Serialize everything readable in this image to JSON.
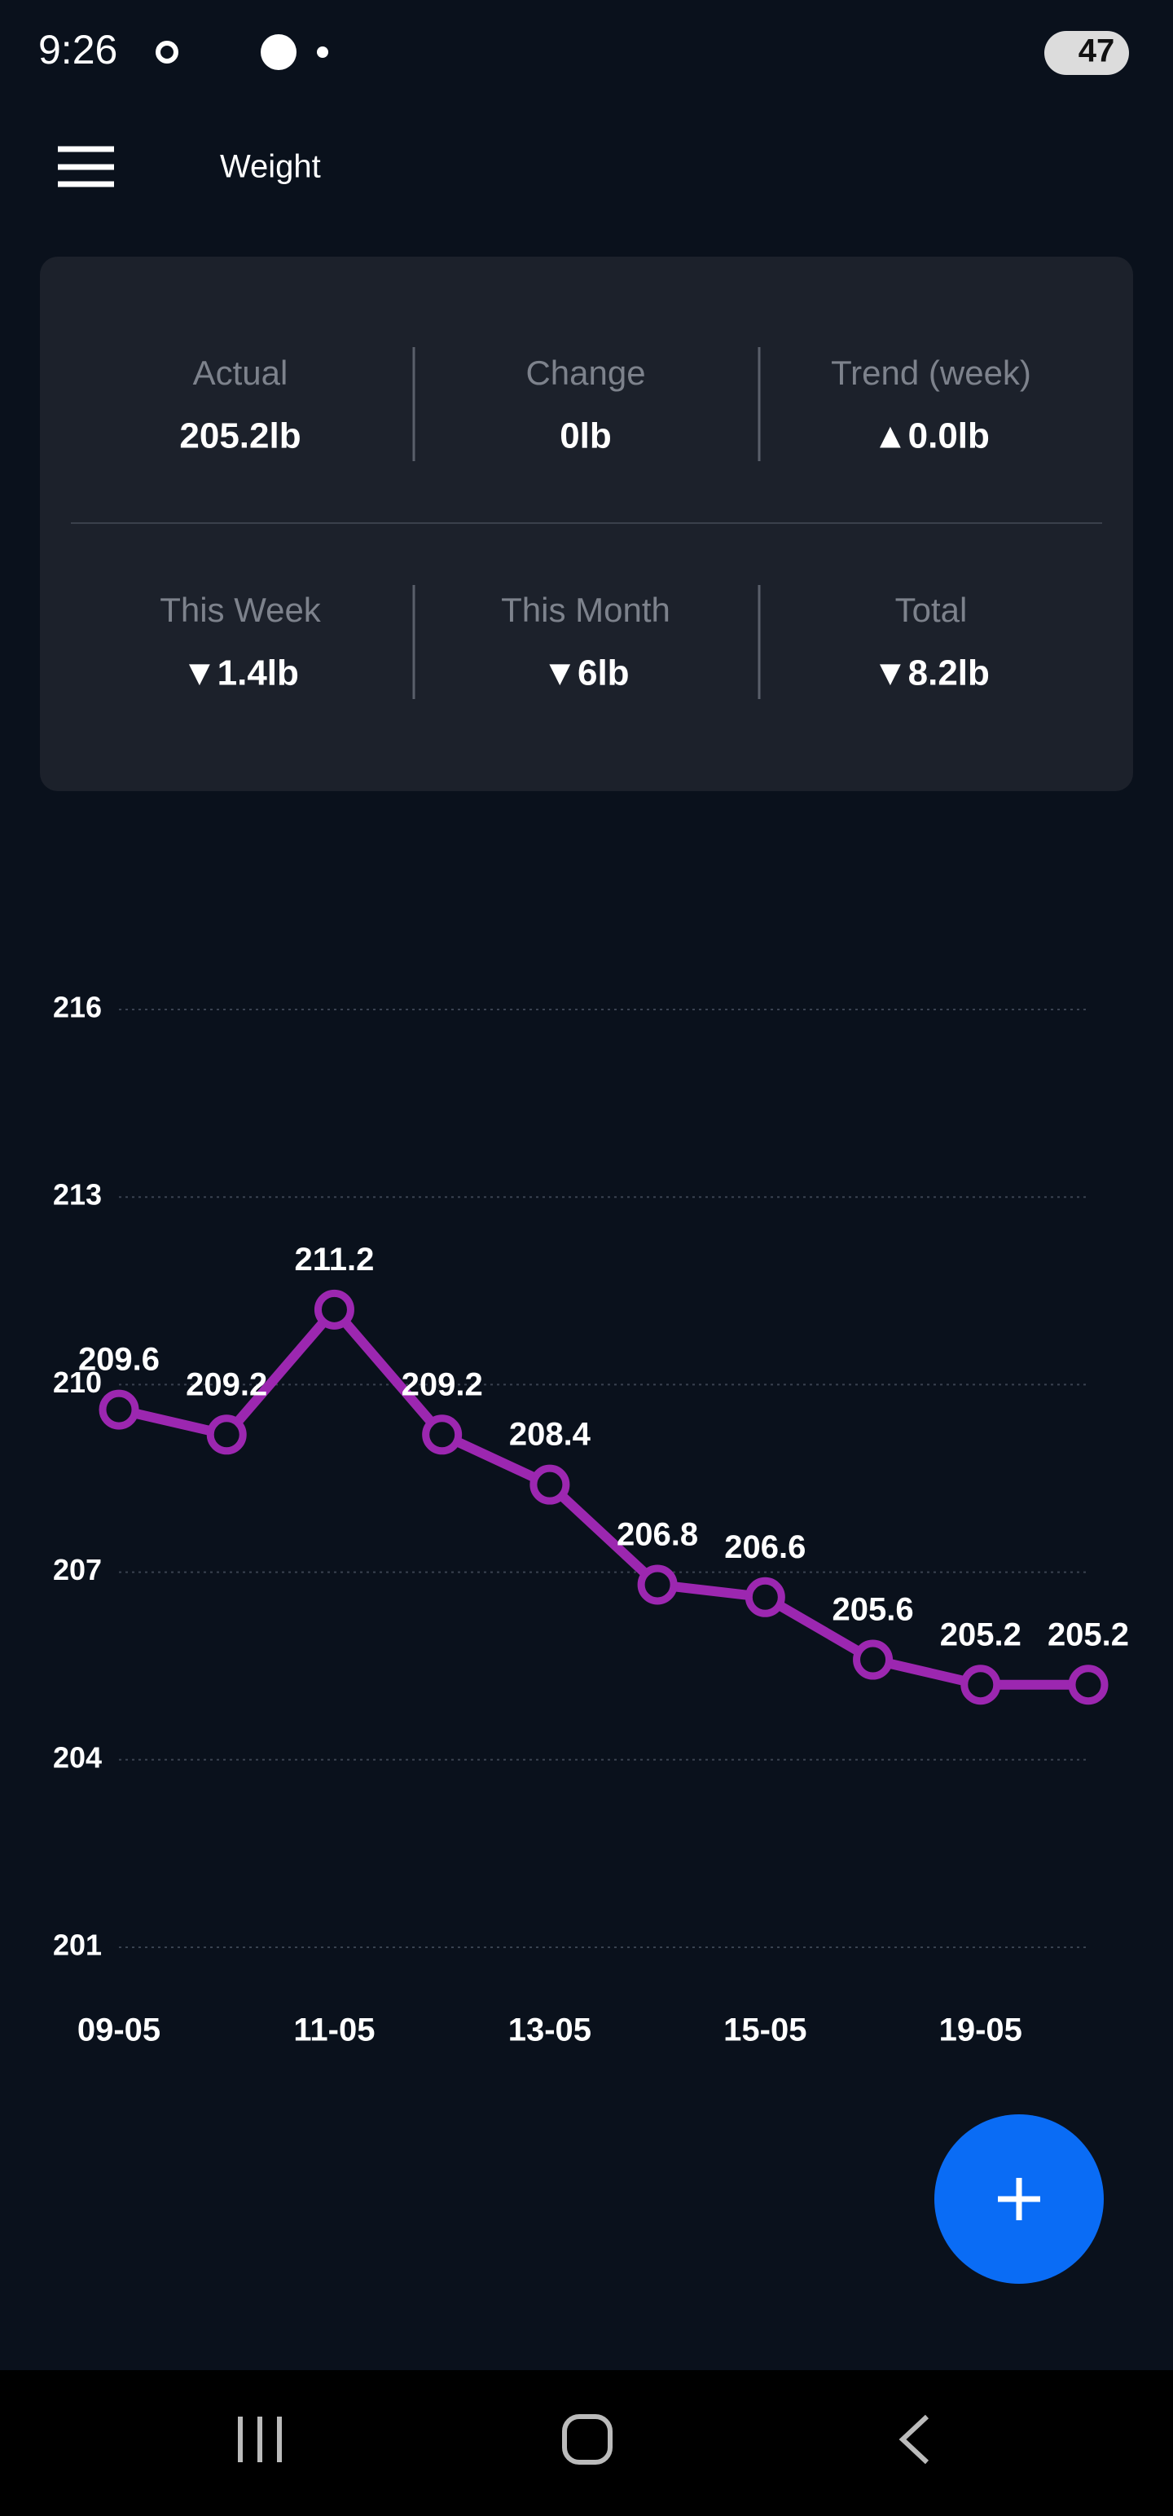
{
  "status_bar": {
    "time": "9:26",
    "battery": "47"
  },
  "header": {
    "title": "Weight"
  },
  "stats": [
    [
      {
        "label": "Actual",
        "value": "205.2lb"
      },
      {
        "label": "Change",
        "value": "0lb"
      },
      {
        "label": "Trend (week)",
        "value": "▲0.0lb"
      }
    ],
    [
      {
        "label": "This Week",
        "value": "▼1.4lb"
      },
      {
        "label": "This Month",
        "value": "▼6lb"
      },
      {
        "label": "Total",
        "value": "▼8.2lb"
      }
    ]
  ],
  "chart_data": {
    "type": "line",
    "categories": [
      "09-05",
      null,
      "11-05",
      null,
      "13-05",
      null,
      "15-05",
      null,
      "19-05",
      null
    ],
    "values": [
      209.6,
      209.2,
      211.2,
      209.2,
      208.4,
      206.8,
      206.6,
      205.6,
      205.2,
      205.2
    ],
    "color": "#9c27b0",
    "ylim": [
      201,
      216
    ],
    "yticks": [
      201,
      204,
      207,
      210,
      213,
      216
    ],
    "grid": true
  }
}
